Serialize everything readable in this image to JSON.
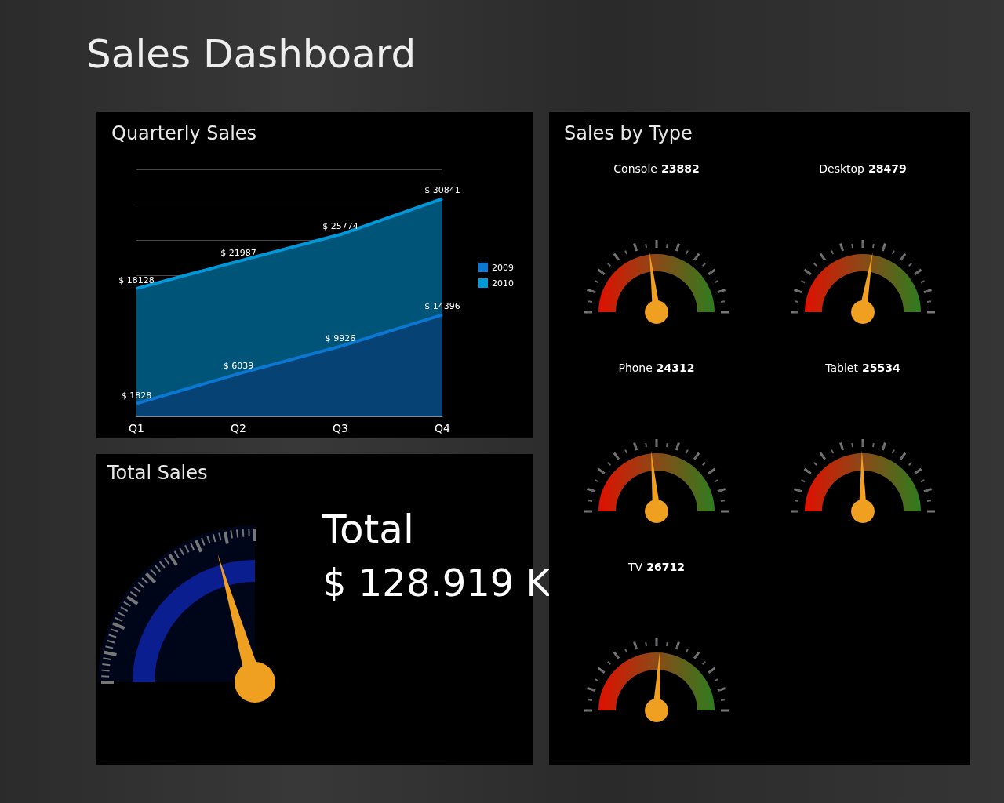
{
  "chart_data": [
    {
      "type": "other",
      "title": "Sales Dashboard"
    },
    {
      "type": "area",
      "title": "Quarterly Sales",
      "categories": [
        "Q1",
        "Q2",
        "Q3",
        "Q4"
      ],
      "series": [
        {
          "name": "2009",
          "color": "#0a78d2",
          "values": [
            1828,
            6039,
            9926,
            14396
          ],
          "value_labels": [
            "$ 1828",
            "$ 6039",
            "$ 9926",
            "$ 14396"
          ]
        },
        {
          "name": "2010",
          "color": "#0098d8",
          "values": [
            18128,
            21987,
            25774,
            30841
          ],
          "value_labels": [
            "$ 18128",
            "$ 21987",
            "$ 25774",
            "$ 30841"
          ]
        }
      ],
      "grid": "y",
      "legend": "right",
      "tick_labels": "x"
    },
    {
      "type": "other",
      "title": "Total Sales",
      "annotations": [
        "Total",
        "$ 128.919 K"
      ]
    },
    {
      "type": "other",
      "title": "Sales by Type",
      "categories": [
        "Console",
        "Desktop",
        "Phone",
        "Tablet",
        "TV"
      ],
      "values": [
        23882,
        28479,
        24312,
        25534,
        26712
      ],
      "data_labels": true
    }
  ]
}
